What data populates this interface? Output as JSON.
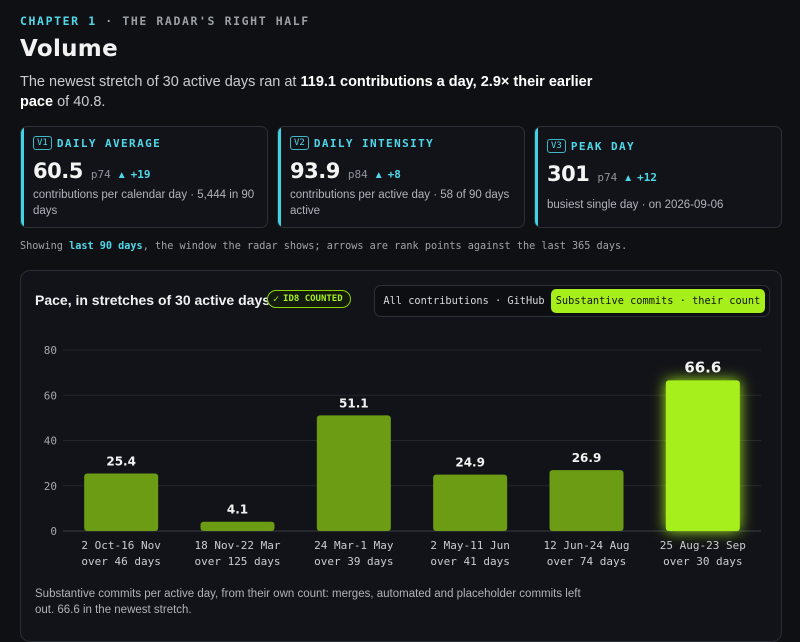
{
  "header": {
    "chapter_num": "CHAPTER 1",
    "chapter_sep": "·",
    "chapter_title": "THE RADAR'S RIGHT HALF",
    "title": "Volume"
  },
  "lede": {
    "pre": "The newest stretch of 30 active days ran at ",
    "bold1": "119.1 contributions a day",
    "mid": ", ",
    "bold2": "2.9× their earlier pace",
    "post": " of 40.8."
  },
  "cards": [
    {
      "tag": "V1",
      "label": "DAILY AVERAGE",
      "value": "60.5",
      "pct": "p74",
      "arrow": "▲",
      "delta": "+19",
      "sub": "contributions per calendar day · 5,444 in 90 days"
    },
    {
      "tag": "V2",
      "label": "DAILY INTENSITY",
      "value": "93.9",
      "pct": "p84",
      "arrow": "▲",
      "delta": "+8",
      "sub": "contributions per active day · 58 of 90 days active"
    },
    {
      "tag": "V3",
      "label": "PEAK DAY",
      "value": "301",
      "pct": "p74",
      "arrow": "▲",
      "delta": "+12",
      "sub": "busiest single day · on 2026-09-06"
    }
  ],
  "note": {
    "pre": "Showing ",
    "hl": "last 90 days",
    "post": ", the window the radar shows; arrows are rank points against the last 365 days."
  },
  "panel": {
    "title": "Pace, in stretches of 30 active days",
    "badge_check": "✓",
    "badge": "ID8 COUNTED",
    "toggle_all": "All contributions · GitHub",
    "toggle_sub": "Substantive commits · their count",
    "caption": "Substantive commits per active day, from their own count: merges, automated and placeholder commits left out. 66.6 in the newest stretch."
  },
  "colors": {
    "accent_cyan": "#4fd8ea",
    "bar_green": "#6b9c14",
    "bar_highlight": "#a6ef1a"
  },
  "chart_data": {
    "type": "bar",
    "categories": [
      "2 Oct–16 Nov",
      "18 Nov–22 Mar",
      "24 Mar–1 May",
      "2 May–11 Jun",
      "12 Jun–24 Aug",
      "25 Aug–23 Sep"
    ],
    "categories_display": [
      "2 Oct-16 Nov",
      "18 Nov-22 Mar",
      "24 Mar-1 May",
      "2 May-11 Jun",
      "12 Jun-24 Aug",
      "25 Aug-23 Sep"
    ],
    "sublabels": [
      "over 46 days",
      "over 125 days",
      "over 39 days",
      "over 41 days",
      "over 74 days",
      "over 30 days"
    ],
    "values": [
      25.4,
      4.1,
      51.1,
      24.9,
      26.9,
      66.6
    ],
    "value_labels": [
      "25.4",
      "4.1",
      "51.1",
      "24.9",
      "26.9",
      "66.6"
    ],
    "highlight_index": 5,
    "ylim": [
      0,
      80
    ],
    "yticks": [
      0,
      20,
      40,
      60,
      80
    ],
    "grid": true,
    "xlabel": "",
    "ylabel": ""
  }
}
